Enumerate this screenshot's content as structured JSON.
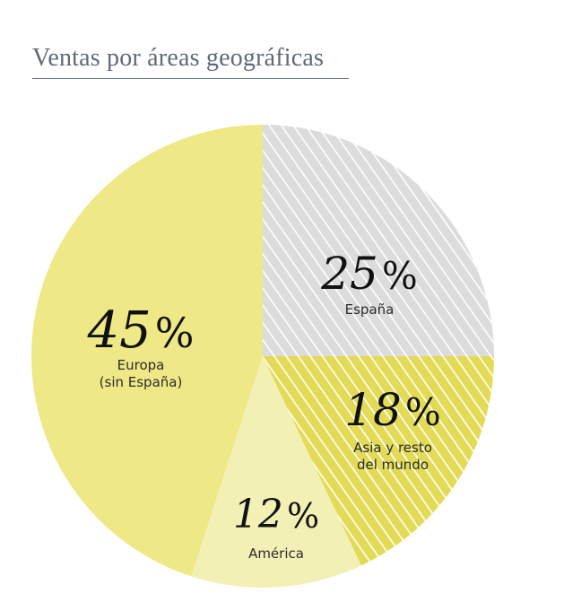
{
  "title": "Ventas por áreas geográficas",
  "colors": {
    "europa": "#efe887",
    "espana_bg": "#dcdcdc",
    "espana_stripe": "#ffffff",
    "asia_bg": "#e3db55",
    "asia_stripe": "#ffffff",
    "america": "#f3f0b6",
    "text": "#111111",
    "title": "#5e6a76"
  },
  "chart_data": {
    "type": "pie",
    "title": "Ventas por áreas geográficas",
    "unit": "%",
    "slices": [
      {
        "key": "espana",
        "label_lines": [
          "España"
        ],
        "value": 25,
        "value_text": "25",
        "pattern": "stripes-gray"
      },
      {
        "key": "asia",
        "label_lines": [
          "Asia y resto",
          "del mundo"
        ],
        "value": 18,
        "value_text": "18",
        "pattern": "stripes-yellow"
      },
      {
        "key": "america",
        "label_lines": [
          "América"
        ],
        "value": 12,
        "value_text": "12",
        "pattern": "solid-light"
      },
      {
        "key": "europa",
        "label_lines": [
          "Europa",
          "(sin España)"
        ],
        "value": 45,
        "value_text": "45",
        "pattern": "solid"
      }
    ]
  }
}
